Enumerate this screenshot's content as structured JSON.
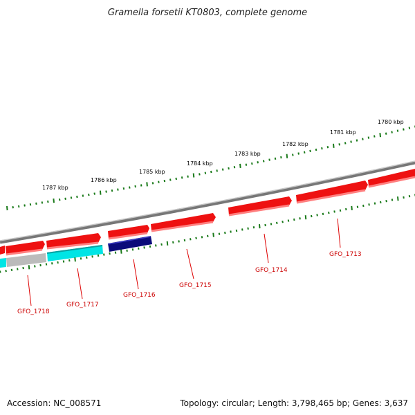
{
  "title": "Gramella forsetii KT0803, complete genome",
  "footer": {
    "accession": "Accession: NC_008571",
    "topology": "Topology: circular; Length: 3,798,465 bp; Genes: 3,637"
  },
  "scale_labels": [
    "1780 kbp",
    "1781 kbp",
    "1782 kbp",
    "1783 kbp",
    "1784 kbp",
    "1785 kbp",
    "1786 kbp",
    "1787 kbp"
  ],
  "genes": [
    {
      "label": "GFO_1713",
      "color": "#ee1111",
      "strand": "forward"
    },
    {
      "label": "GFO_1714",
      "color": "#ee1111",
      "strand": "forward"
    },
    {
      "label": "GFO_1715",
      "color": "#ee1111",
      "strand": "forward"
    },
    {
      "label": "GFO_1716",
      "color": "#0b0b7a",
      "strand": "reverse"
    },
    {
      "label": "GFO_1717",
      "color": "#00e5e5",
      "strand": "reverse"
    },
    {
      "label": "GFO_1718",
      "color": "#bbbbbb",
      "strand": "reverse"
    }
  ],
  "colors": {
    "forward_gene": "#ee1111",
    "backbone": "#8a8a8a",
    "tick": "#1a7a1a",
    "label": "#cc0000"
  }
}
